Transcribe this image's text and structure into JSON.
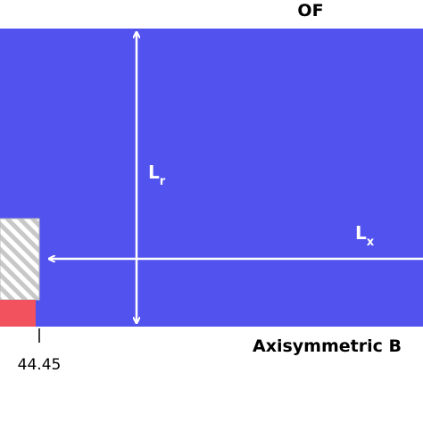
{
  "labels": {
    "top": "OF",
    "bottom": "Axisymmetric B",
    "lr": {
      "main": "L",
      "sub": "r"
    },
    "lx": {
      "main": "L",
      "sub": "x"
    },
    "dimension": "44.45"
  }
}
